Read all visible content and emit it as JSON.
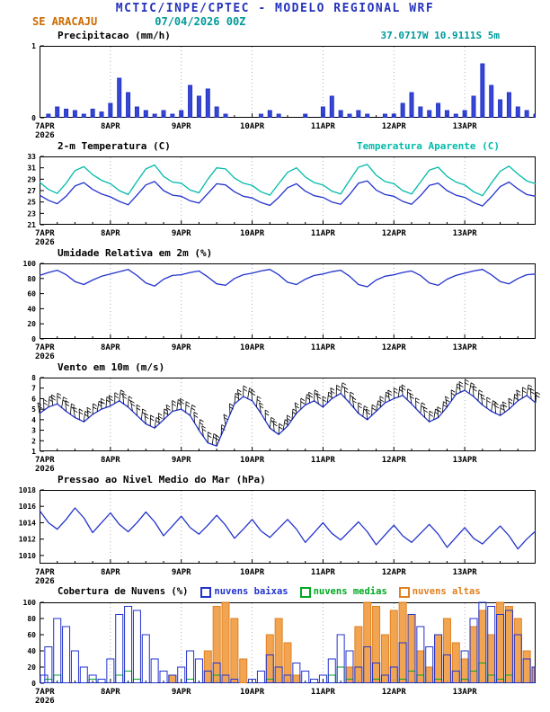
{
  "header": {
    "title": "MCTIC/INPE/CPTEC - MODELO REGIONAL WRF",
    "station": "SE ARACAJU",
    "run": "07/04/2026 00Z",
    "location": "37.0717W 10.9111S 5m"
  },
  "x_labels": [
    "7APR",
    "8APR",
    "9APR",
    "10APR",
    "11APR",
    "12APR",
    "13APR"
  ],
  "time": {
    "year": "2026",
    "step_hours": 3,
    "total_hours": 168,
    "start": "7APR 00Z",
    "end": "14APR 00Z"
  },
  "colors": {
    "title_blue": "#2433bb",
    "station_orange": "#cc6a00",
    "teal": "#009999",
    "line_blue": "#2233cc",
    "cyan": "#00bbaa",
    "green": "#00aa22",
    "orange": "#e08020",
    "orange_fill": "#f09b3f"
  },
  "chart_data": [
    {
      "type": "bar",
      "title": "Precipitacao (mm/h)",
      "ylim": [
        0,
        1
      ],
      "yticks": [
        0,
        1
      ],
      "series": [
        {
          "name": "precipitacao",
          "color": "#2233cc",
          "fill": "#2233cc",
          "values": [
            0,
            0.05,
            0.15,
            0.12,
            0.1,
            0.05,
            0.12,
            0.08,
            0.2,
            0.55,
            0.35,
            0.15,
            0.1,
            0.05,
            0.1,
            0.05,
            0.1,
            0.45,
            0.3,
            0.4,
            0.15,
            0.05,
            0,
            0,
            0,
            0.05,
            0.1,
            0.05,
            0,
            0,
            0.05,
            0,
            0.15,
            0.3,
            0.1,
            0.05,
            0.1,
            0.05,
            0,
            0.05,
            0.05,
            0.2,
            0.35,
            0.15,
            0.1,
            0.2,
            0.1,
            0.05,
            0.1,
            0.3,
            0.75,
            0.45,
            0.25,
            0.35,
            0.15,
            0.1,
            0.05
          ]
        }
      ]
    },
    {
      "type": "line",
      "title": "2-m Temperatura (C)",
      "right_label": "Temperatura Aparente (C)",
      "ylim": [
        21,
        33
      ],
      "yticks": [
        21,
        23,
        25,
        27,
        29,
        31,
        33
      ],
      "series": [
        {
          "name": "2-m Temperatura",
          "color": "#2233cc",
          "values": [
            26.2,
            25.3,
            24.7,
            26.0,
            27.8,
            28.4,
            27.2,
            26.4,
            25.9,
            25.1,
            24.5,
            26.2,
            28.0,
            28.6,
            27.0,
            26.2,
            26.0,
            25.2,
            24.8,
            26.5,
            28.2,
            28.0,
            26.8,
            26.0,
            25.7,
            24.9,
            24.4,
            25.8,
            27.5,
            28.2,
            26.9,
            26.1,
            25.8,
            25.0,
            24.6,
            26.3,
            28.3,
            28.7,
            27.1,
            26.3,
            26.0,
            25.1,
            24.6,
            26.1,
            27.9,
            28.3,
            27.0,
            26.2,
            25.8,
            24.9,
            24.3,
            25.9,
            27.7,
            28.5,
            27.3,
            26.3,
            26.0
          ]
        },
        {
          "name": "Temperatura Aparente",
          "color": "#00bbaa",
          "values": [
            28.5,
            27.2,
            26.5,
            28.3,
            30.5,
            31.2,
            29.8,
            28.8,
            28.2,
            27.0,
            26.3,
            28.6,
            30.8,
            31.5,
            29.5,
            28.5,
            28.3,
            27.1,
            26.6,
            29.0,
            31.0,
            30.8,
            29.2,
            28.3,
            27.9,
            26.8,
            26.2,
            28.2,
            30.2,
            31.0,
            29.4,
            28.4,
            28.0,
            26.9,
            26.4,
            28.8,
            31.1,
            31.6,
            29.7,
            28.6,
            28.2,
            27.0,
            26.4,
            28.5,
            30.6,
            31.1,
            29.5,
            28.5,
            28.0,
            26.8,
            26.1,
            28.3,
            30.4,
            31.3,
            29.9,
            28.7,
            28.2
          ]
        }
      ]
    },
    {
      "type": "line",
      "title": "Umidade Relativa em 2m (%)",
      "ylim": [
        0,
        100
      ],
      "yticks": [
        0,
        20,
        40,
        60,
        80,
        100
      ],
      "series": [
        {
          "name": "umidade relativa",
          "color": "#2233cc",
          "values": [
            84,
            88,
            91,
            85,
            76,
            72,
            78,
            83,
            86,
            89,
            92,
            84,
            74,
            70,
            79,
            84,
            85,
            88,
            90,
            82,
            73,
            71,
            80,
            85,
            87,
            90,
            92,
            85,
            75,
            72,
            79,
            84,
            86,
            89,
            91,
            83,
            72,
            69,
            78,
            83,
            85,
            88,
            90,
            84,
            74,
            71,
            79,
            84,
            87,
            90,
            92,
            85,
            76,
            73,
            80,
            85,
            86
          ]
        }
      ]
    },
    {
      "type": "line",
      "barbs": true,
      "title": "Vento em 10m (m/s)",
      "ylim": [
        1,
        8
      ],
      "yticks": [
        1,
        2,
        3,
        4,
        5,
        6,
        7,
        8
      ],
      "series": [
        {
          "name": "vento 10m",
          "color": "#2233cc",
          "values": [
            4.6,
            5.2,
            5.5,
            4.8,
            4.2,
            3.8,
            4.5,
            5.0,
            5.3,
            5.8,
            5.2,
            4.4,
            3.6,
            3.2,
            4.0,
            4.8,
            5.0,
            4.4,
            3.0,
            1.8,
            1.5,
            3.5,
            5.5,
            6.2,
            5.8,
            4.6,
            3.2,
            2.6,
            3.4,
            4.6,
            5.4,
            5.8,
            5.2,
            6.0,
            6.5,
            5.6,
            4.6,
            4.0,
            4.8,
            5.6,
            6.0,
            6.3,
            5.5,
            4.6,
            3.8,
            4.2,
            5.2,
            6.4,
            6.8,
            6.2,
            5.4,
            4.8,
            4.4,
            5.0,
            5.8,
            6.3,
            5.6
          ]
        }
      ]
    },
    {
      "type": "line",
      "title": "Pressao ao Nivel Medio do Mar (hPa)",
      "ylim": [
        1009,
        1018
      ],
      "yticks": [
        1010,
        1012,
        1014,
        1016,
        1018
      ],
      "series": [
        {
          "name": "pressao nmm",
          "color": "#2233cc",
          "values": [
            1015.5,
            1014.0,
            1013.2,
            1014.4,
            1015.8,
            1014.6,
            1012.8,
            1014.0,
            1015.2,
            1013.8,
            1012.9,
            1014.0,
            1015.3,
            1014.1,
            1012.4,
            1013.6,
            1014.8,
            1013.4,
            1012.6,
            1013.7,
            1014.9,
            1013.7,
            1012.1,
            1013.2,
            1014.4,
            1013.0,
            1012.2,
            1013.3,
            1014.4,
            1013.2,
            1011.6,
            1012.8,
            1014.0,
            1012.7,
            1011.9,
            1013.0,
            1014.1,
            1012.9,
            1011.3,
            1012.5,
            1013.7,
            1012.4,
            1011.6,
            1012.7,
            1013.8,
            1012.6,
            1011.0,
            1012.2,
            1013.4,
            1012.1,
            1011.4,
            1012.5,
            1013.6,
            1012.4,
            1010.8,
            1012.0,
            1013.0
          ]
        }
      ]
    },
    {
      "type": "bar",
      "title": "Cobertura de Nuvens (%)",
      "ylim": [
        0,
        100
      ],
      "yticks": [
        0,
        20,
        40,
        60,
        80,
        100
      ],
      "series": [
        {
          "name": "nuvens baixas",
          "color": "#2233cc",
          "fill": "none",
          "values": [
            10,
            45,
            80,
            70,
            40,
            20,
            10,
            5,
            30,
            85,
            95,
            90,
            60,
            30,
            15,
            10,
            20,
            40,
            30,
            15,
            25,
            10,
            5,
            0,
            5,
            15,
            35,
            20,
            10,
            25,
            15,
            5,
            10,
            30,
            60,
            40,
            20,
            45,
            25,
            10,
            20,
            50,
            85,
            70,
            45,
            60,
            35,
            15,
            40,
            80,
            100,
            95,
            85,
            90,
            60,
            30,
            20
          ]
        },
        {
          "name": "nuvens medias",
          "color": "#00aa22",
          "fill": "none",
          "values": [
            0,
            5,
            10,
            0,
            0,
            0,
            5,
            0,
            0,
            10,
            15,
            5,
            0,
            0,
            0,
            0,
            0,
            5,
            0,
            0,
            10,
            0,
            0,
            0,
            0,
            0,
            5,
            0,
            0,
            0,
            0,
            0,
            0,
            10,
            20,
            5,
            0,
            0,
            5,
            0,
            0,
            5,
            15,
            10,
            0,
            5,
            0,
            0,
            5,
            15,
            25,
            10,
            5,
            10,
            0,
            0,
            0
          ]
        },
        {
          "name": "nuvens altas",
          "color": "#e08020",
          "fill": "#f09b3f",
          "values": [
            0,
            0,
            0,
            0,
            0,
            0,
            0,
            0,
            0,
            0,
            0,
            0,
            0,
            0,
            0,
            10,
            0,
            0,
            0,
            40,
            95,
            100,
            80,
            30,
            0,
            0,
            60,
            80,
            50,
            10,
            0,
            0,
            0,
            0,
            0,
            20,
            70,
            100,
            95,
            60,
            90,
            100,
            85,
            40,
            20,
            60,
            80,
            50,
            30,
            70,
            90,
            60,
            100,
            95,
            80,
            40,
            20
          ]
        }
      ]
    }
  ]
}
